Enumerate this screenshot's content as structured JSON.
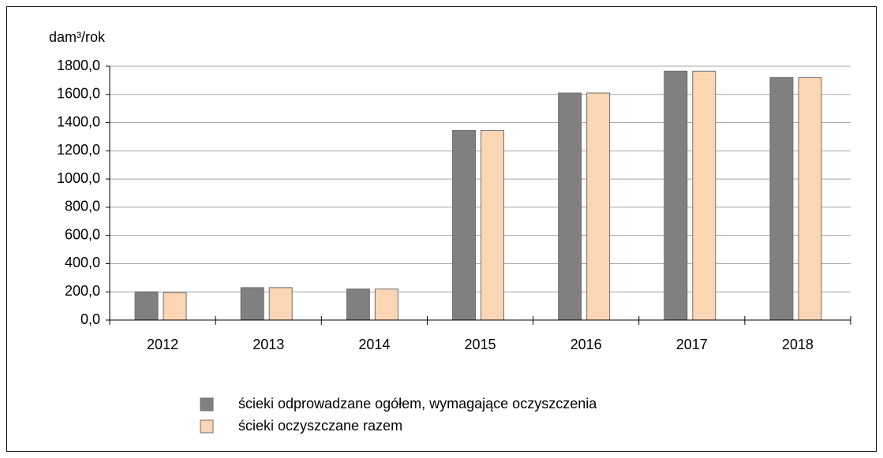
{
  "chart_data": {
    "type": "bar",
    "y_label": "dam³/rok",
    "categories": [
      "2012",
      "2013",
      "2014",
      "2015",
      "2016",
      "2017",
      "2018"
    ],
    "series": [
      {
        "name": "ścieki odprowadzane ogółem, wymagające oczyszczenia",
        "color": "#808080",
        "values": [
          200,
          230,
          220,
          1345,
          1610,
          1765,
          1720
        ]
      },
      {
        "name": "ścieki oczyszczane razem",
        "color": "#fcd5b5",
        "values": [
          195,
          230,
          220,
          1345,
          1610,
          1765,
          1720
        ]
      }
    ],
    "ylim": [
      0,
      1800
    ],
    "yticks": [
      {
        "value": 0,
        "label": "0,0"
      },
      {
        "value": 200,
        "label": "200,0"
      },
      {
        "value": 400,
        "label": "400,0"
      },
      {
        "value": 600,
        "label": "600,0"
      },
      {
        "value": 800,
        "label": "800,0"
      },
      {
        "value": 1000,
        "label": "1000,0"
      },
      {
        "value": 1200,
        "label": "1200,0"
      },
      {
        "value": 1400,
        "label": "1400,0"
      },
      {
        "value": 1600,
        "label": "1600,0"
      },
      {
        "value": 1800,
        "label": "1800,0"
      }
    ],
    "grid": true,
    "legend": "bottom"
  }
}
